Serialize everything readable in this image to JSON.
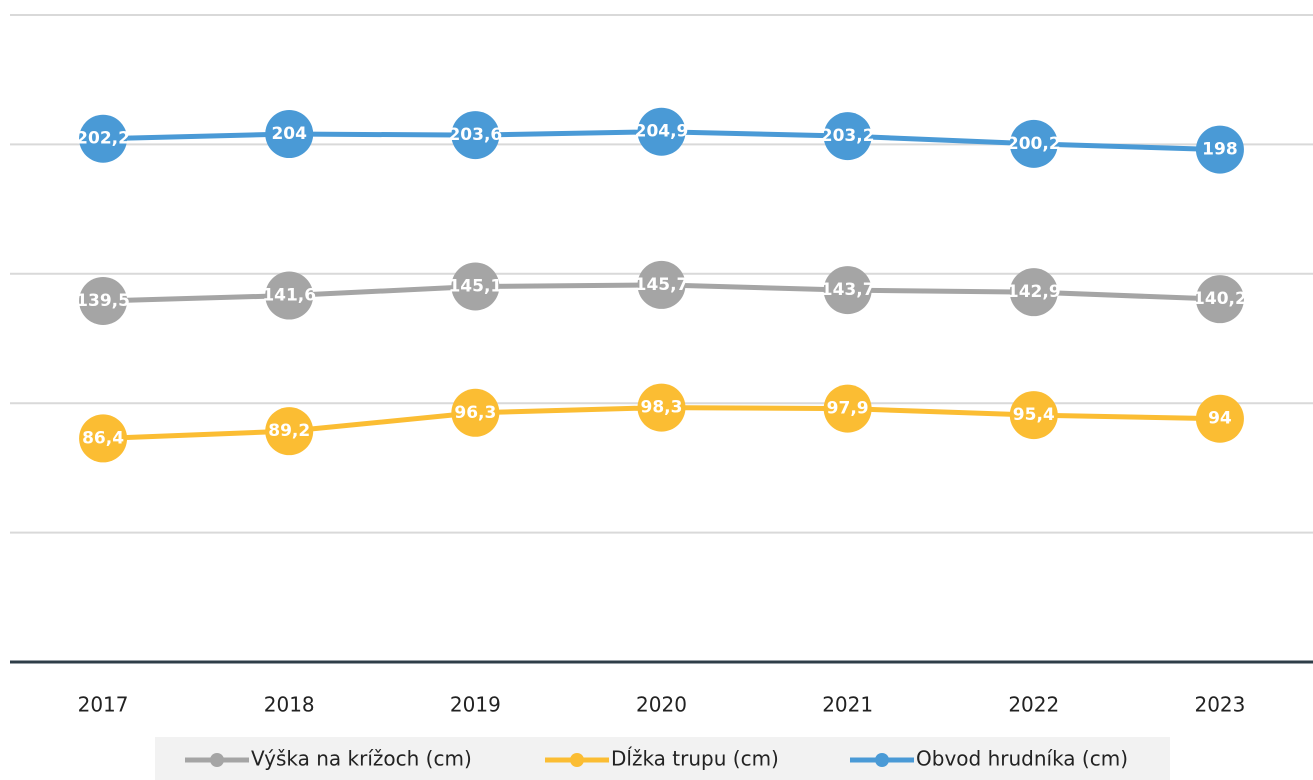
{
  "chart_data": {
    "type": "line",
    "categories": [
      "2017",
      "2018",
      "2019",
      "2020",
      "2021",
      "2022",
      "2023"
    ],
    "series": [
      {
        "name": "Výška na krížoch (cm)",
        "color": "#a5a5a5",
        "values": [
          139.5,
          141.6,
          145.1,
          145.7,
          143.7,
          142.9,
          140.2
        ],
        "value_labels": [
          "139,5",
          "141,6",
          "145,1",
          "145,7",
          "143,7",
          "142,9",
          "140,2"
        ]
      },
      {
        "name": "Dĺžka trupu (cm)",
        "color": "#fbbd33",
        "values": [
          86.4,
          89.2,
          96.3,
          98.3,
          97.9,
          95.4,
          94
        ],
        "value_labels": [
          "86,4",
          "89,2",
          "96,3",
          "98,3",
          "97,9",
          "95,4",
          "94"
        ]
      },
      {
        "name": "Obvod hrudníka (cm)",
        "color": "#4a9ad6",
        "values": [
          202.2,
          204,
          203.6,
          204.9,
          203.2,
          200.2,
          198
        ],
        "value_labels": [
          "202,2",
          "204",
          "203,6",
          "204,9",
          "203,2",
          "200,2",
          "198"
        ]
      }
    ],
    "ylim": [
      0,
      250
    ],
    "yticks": [
      0,
      50,
      100,
      150,
      200,
      250
    ],
    "grid": true,
    "legend": "bottom"
  }
}
